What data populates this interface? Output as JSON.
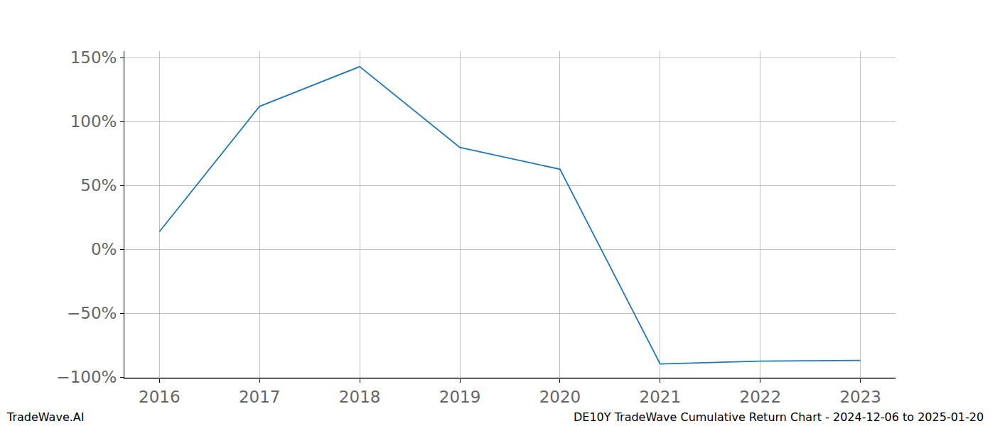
{
  "chart_data": {
    "type": "line",
    "x": [
      2016,
      2017,
      2018,
      2019,
      2020,
      2021,
      2022,
      2023
    ],
    "values": [
      13.8,
      111.8,
      142.9,
      79.7,
      62.6,
      -89.7,
      -87.5,
      -86.9
    ],
    "color": "#1f77b4",
    "xlim": [
      2015.65,
      2023.35
    ],
    "xticks": [
      2016,
      2017,
      2018,
      2019,
      2020,
      2021,
      2022,
      2023
    ],
    "ylim": [
      -101,
      155
    ],
    "yticks": [
      {
        "value": -100,
        "label": "−100%"
      },
      {
        "value": -50,
        "label": "−50%"
      },
      {
        "value": 0,
        "label": "0%"
      },
      {
        "value": 50,
        "label": "50%"
      },
      {
        "value": 100,
        "label": "100%"
      },
      {
        "value": 150,
        "label": "150%"
      }
    ],
    "grid": true,
    "annotations": [
      "TradeWave.AI",
      "DE10Y TradeWave Cumulative Return Chart - 2024-12-06 to 2025-01-20"
    ]
  }
}
